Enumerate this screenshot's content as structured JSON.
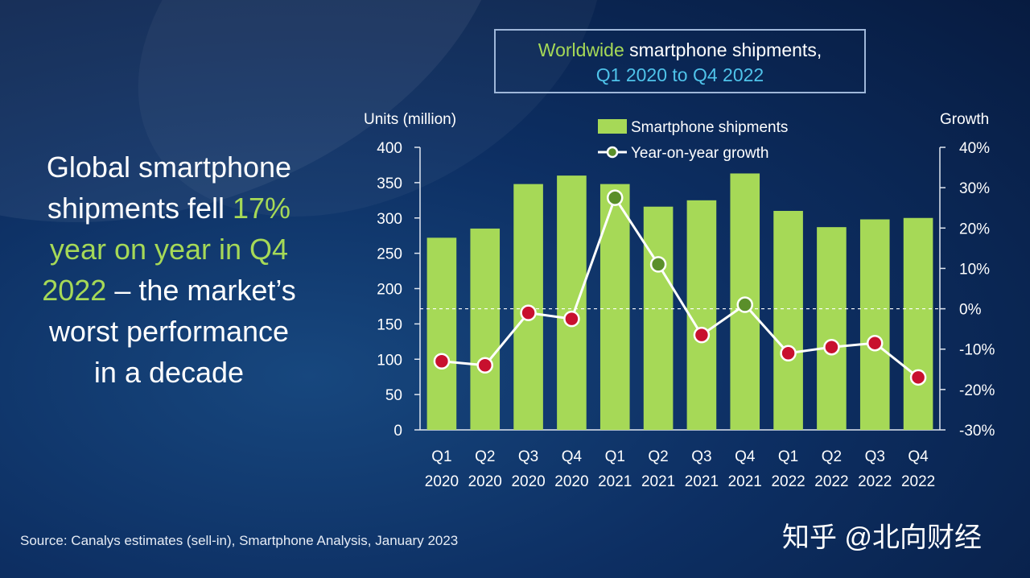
{
  "headline": {
    "line1": "Global smartphone",
    "line2_a": "shipments fell ",
    "line2_b": "17%",
    "line3": "year on year in Q4",
    "line4_a": "2022",
    "line4_b": " – the market’s",
    "line5": "worst performance",
    "line6": "in a decade"
  },
  "title": {
    "part1": "Worldwide",
    "part2": " smartphone shipments,",
    "part3": "Q1 2020 to Q4 2022"
  },
  "source": "Source: Canalys estimates (sell-in), Smartphone Analysis, January 2023",
  "watermark": "知乎 @北向财经",
  "colors": {
    "bar": "#a6d957",
    "line": "#ffffff",
    "negative_marker": "#c8102e",
    "positive_marker": "#5a8f2a",
    "zero_line": "#ffffff"
  },
  "chart_data": {
    "type": "bar",
    "title": "Worldwide smartphone shipments, Q1 2020 to Q4 2022",
    "ylabel": "Units (million)",
    "y2label": "Growth",
    "ylim": [
      0,
      400
    ],
    "y2lim": [
      -0.3,
      0.4
    ],
    "yticks": [
      "0",
      "50",
      "100",
      "150",
      "200",
      "250",
      "300",
      "350",
      "400"
    ],
    "y2ticks": [
      "-30%",
      "-20%",
      "-10%",
      "0%",
      "10%",
      "20%",
      "30%",
      "40%"
    ],
    "categories": [
      [
        "Q1",
        "2020"
      ],
      [
        "Q2",
        "2020"
      ],
      [
        "Q3",
        "2020"
      ],
      [
        "Q4",
        "2020"
      ],
      [
        "Q1",
        "2021"
      ],
      [
        "Q2",
        "2021"
      ],
      [
        "Q3",
        "2021"
      ],
      [
        "Q4",
        "2021"
      ],
      [
        "Q1",
        "2022"
      ],
      [
        "Q2",
        "2022"
      ],
      [
        "Q3",
        "2022"
      ],
      [
        "Q4",
        "2022"
      ]
    ],
    "legend_position": "top",
    "series": [
      {
        "name": "Smartphone shipments",
        "type": "bar",
        "axis": "left",
        "values": [
          272,
          285,
          348,
          360,
          348,
          316,
          325,
          363,
          310,
          287,
          298,
          300
        ]
      },
      {
        "name": "Year-on-year growth",
        "type": "line",
        "axis": "right",
        "values": [
          -0.13,
          -0.14,
          -0.01,
          -0.025,
          0.275,
          0.11,
          -0.065,
          0.01,
          -0.11,
          -0.095,
          -0.085,
          -0.17
        ]
      }
    ]
  }
}
